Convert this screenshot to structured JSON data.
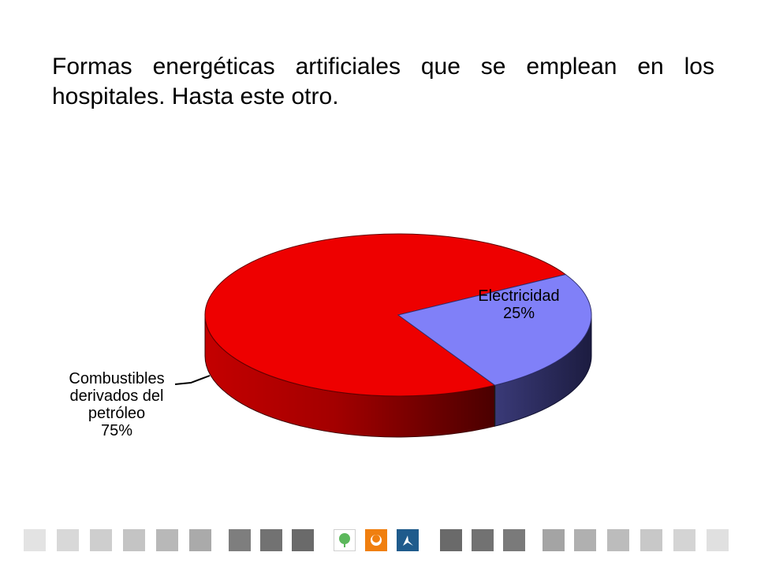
{
  "slide": {
    "title": "Formas energéticas artificiales que se emplean en los hospitales. Hasta este otro."
  },
  "chart_data": {
    "type": "pie",
    "style": "3d",
    "title": "",
    "slices": [
      {
        "label_lines": [
          "Combustibles",
          "derivados del",
          "petróleo"
        ],
        "percent_label": "75%",
        "value": 75,
        "color": "#ee0000"
      },
      {
        "label_lines": [
          "Electricidad"
        ],
        "percent_label": "25%",
        "value": 25,
        "color": "#8080f8"
      }
    ]
  },
  "footer": {
    "colors": {
      "light": "#dcdcdc",
      "mid": "#b4b4b4",
      "dark": "#6e6e6e",
      "green": "#5cb85c",
      "orange": "#f07f0f",
      "blue": "#1f5b8c"
    },
    "icons": [
      "tree-logo-icon",
      "sun-logo-icon",
      "arrow-logo-icon"
    ]
  }
}
